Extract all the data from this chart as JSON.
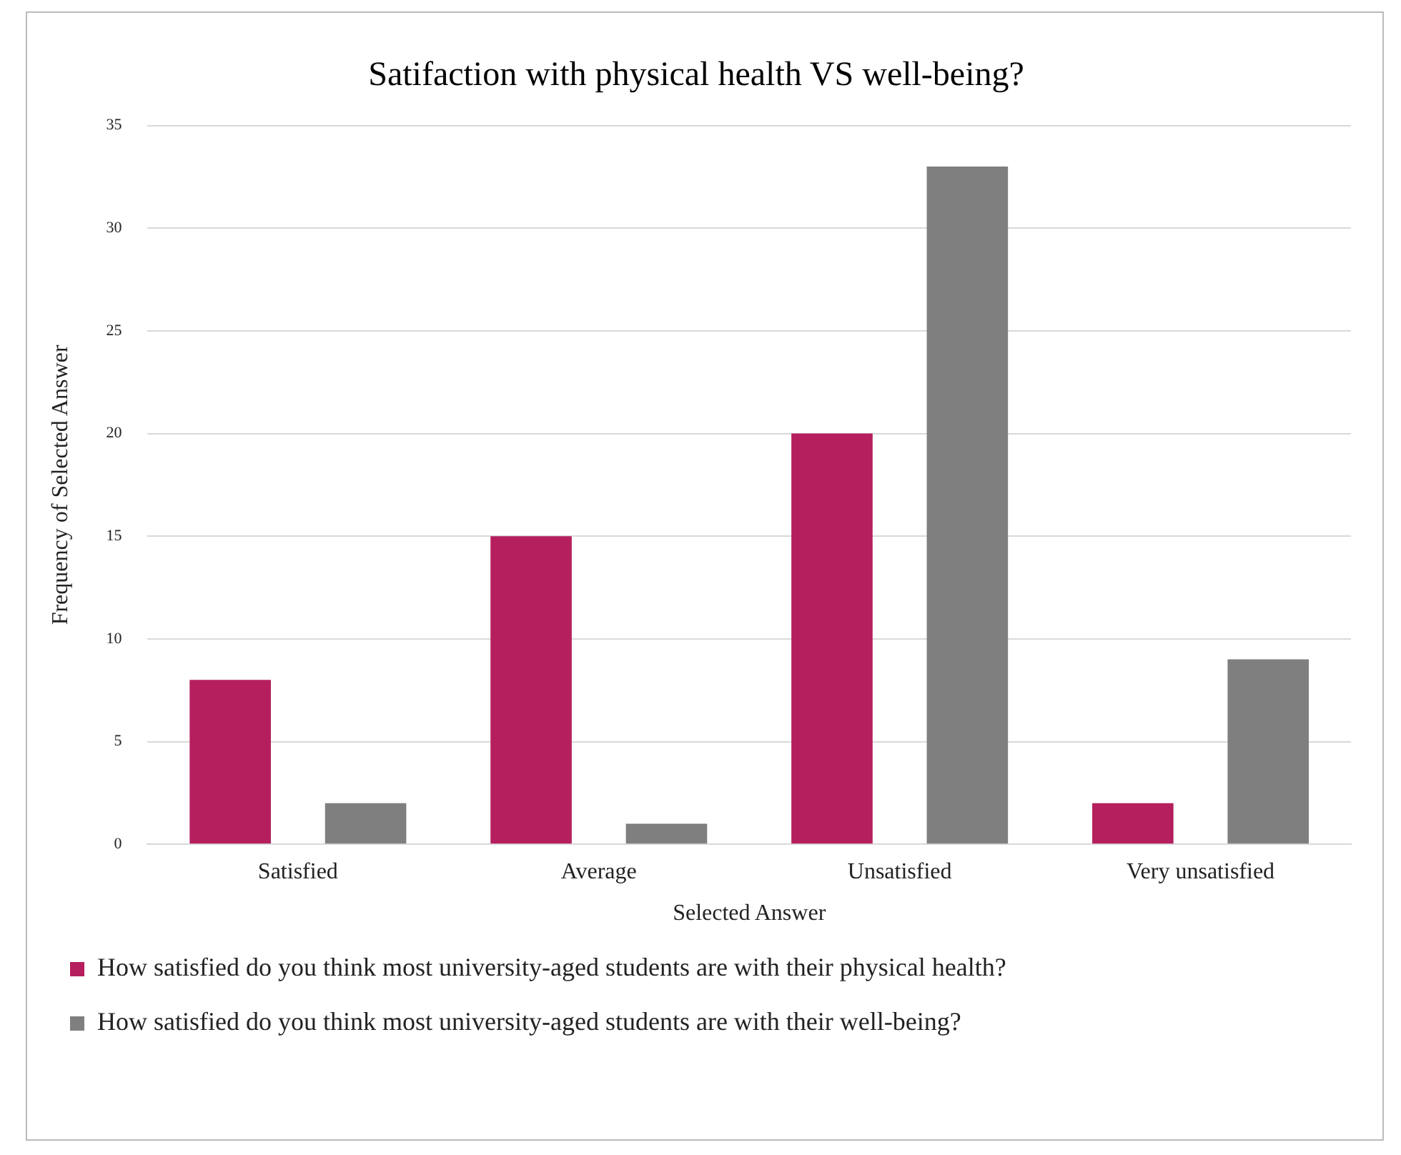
{
  "chart_data": {
    "type": "bar",
    "title": "Satifaction with physical health VS well-being?",
    "xlabel": "Selected Answer",
    "ylabel": "Frequency of Selected Answer",
    "categories": [
      "Satisfied",
      "Average",
      "Unsatisfied",
      "Very unsatisfied"
    ],
    "series": [
      {
        "name": "How satisfied do you think most university-aged students are with their physical health?",
        "color": "#b51f5e",
        "values": [
          8,
          15,
          20,
          2
        ]
      },
      {
        "name": "How satisfied do you think most university-aged students are with their well-being?",
        "color": "#7f7f7f",
        "values": [
          2,
          1,
          33,
          9
        ]
      }
    ],
    "ylim": [
      0,
      35
    ],
    "yticks": [
      0,
      5,
      10,
      15,
      20,
      25,
      30,
      35
    ],
    "grid": "y",
    "legend": "bottom"
  }
}
